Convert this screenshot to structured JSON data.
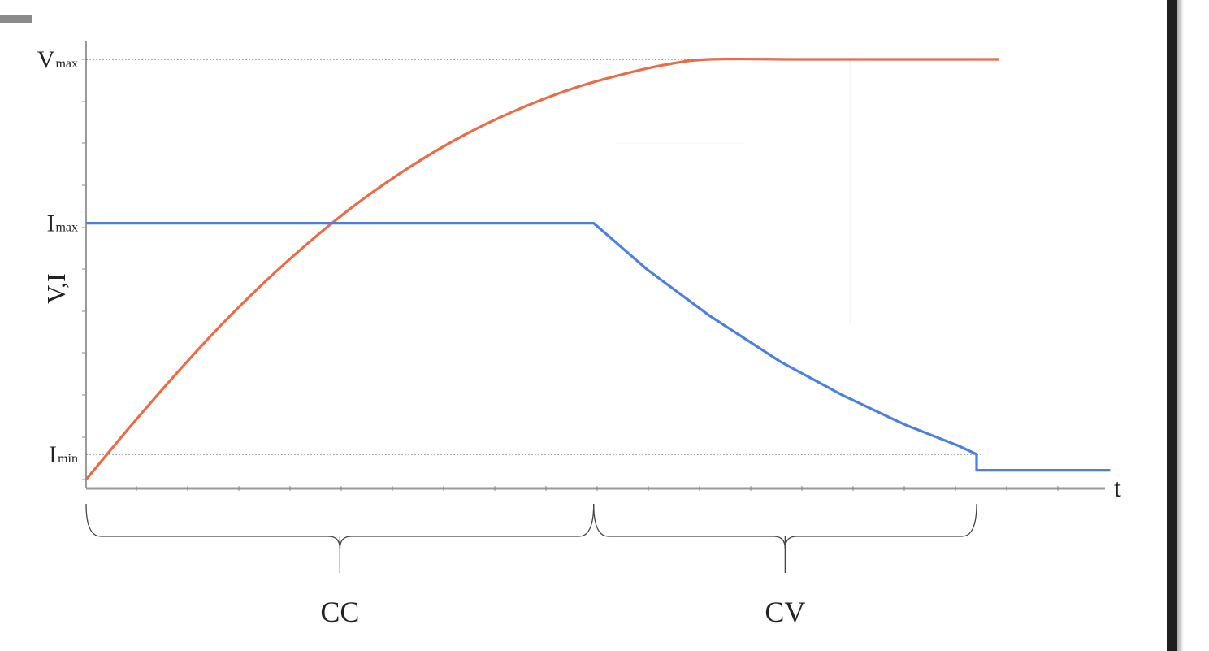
{
  "chart_data": {
    "type": "line",
    "title": "",
    "xlabel": "t",
    "ylabel": "V,I",
    "xlim": [
      0,
      10
    ],
    "ylim": [
      0,
      10
    ],
    "y_levels": [
      {
        "main": "V",
        "sub": "max",
        "value": 10,
        "dotted_guide": true
      },
      {
        "main": "I",
        "sub": "max",
        "value": 6.1,
        "dotted_guide": false
      },
      {
        "main": "I",
        "sub": "min",
        "value": 0.6,
        "dotted_guide": true
      }
    ],
    "series": [
      {
        "color": "#ee6a45",
        "points": [
          [
            0,
            0
          ],
          [
            0.5,
            1.27
          ],
          [
            1,
            2.49
          ],
          [
            1.5,
            3.64
          ],
          [
            2,
            4.69
          ],
          [
            2.5,
            5.64
          ],
          [
            3,
            6.5
          ],
          [
            3.5,
            7.25
          ],
          [
            4,
            7.91
          ],
          [
            4.5,
            8.47
          ],
          [
            5,
            8.94
          ],
          [
            5.5,
            9.33
          ],
          [
            6,
            9.63
          ],
          [
            6.5,
            9.87
          ],
          [
            7,
            10
          ],
          [
            8,
            10
          ],
          [
            9,
            10
          ],
          [
            10,
            10
          ],
          [
            10.25,
            10
          ]
        ]
      },
      {
        "color": "#4a80e4",
        "points": [
          [
            0,
            6.1
          ],
          [
            5.7,
            6.1
          ],
          [
            6.3,
            5.0
          ],
          [
            7,
            3.9
          ],
          [
            7.8,
            2.8
          ],
          [
            8.5,
            2.0
          ],
          [
            9.2,
            1.3
          ],
          [
            9.8,
            0.8
          ],
          [
            10,
            0.6
          ],
          [
            10,
            0.22
          ],
          [
            11.5,
            0.22
          ]
        ]
      }
    ],
    "phases": [
      {
        "label": "CC",
        "from": 0,
        "to": 5.7
      },
      {
        "label": "CV",
        "from": 5.7,
        "to": 10
      }
    ]
  }
}
